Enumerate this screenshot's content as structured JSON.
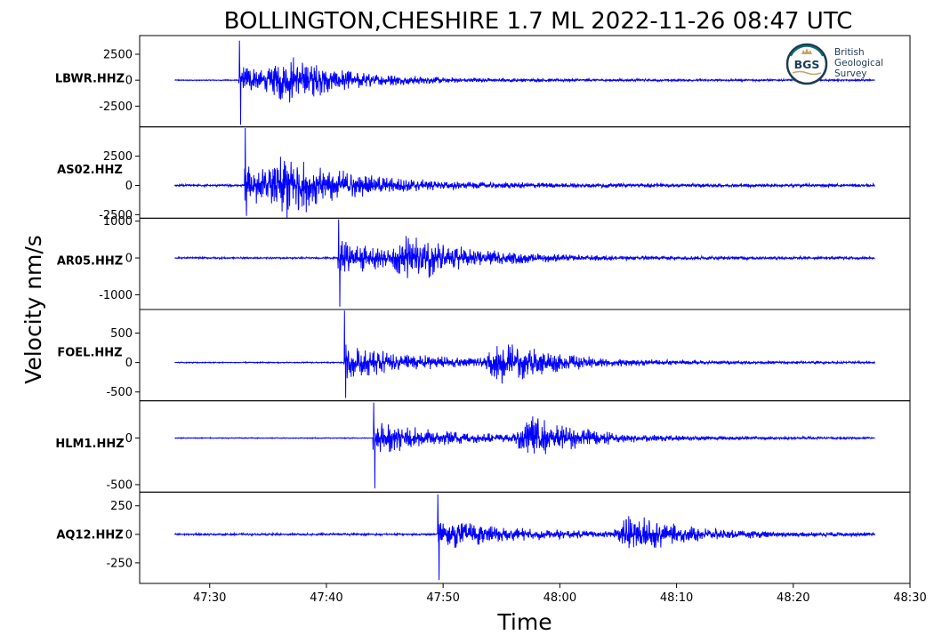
{
  "logo": {
    "abbr": "BGS",
    "lines": [
      "British",
      "Geological",
      "Survey"
    ],
    "colors": {
      "navy": "#1d3a52",
      "teal": "#0b6d6f",
      "gold": "#c6a26a"
    }
  },
  "chart_data": {
    "type": "line",
    "title": "BOLLINGTON,CHESHIRE 1.7 ML   2022-11-26 08:47 UTC",
    "xlabel": "Time",
    "ylabel": "Velocity nm/s",
    "line_color": "#0000ff",
    "x_ticks": [
      "47:30",
      "47:40",
      "47:50",
      "48:00",
      "48:10",
      "48:20",
      "48:30"
    ],
    "time_range": [
      "47:24",
      "48:30"
    ],
    "record_range": [
      "47:27",
      "48:27"
    ],
    "series": [
      {
        "name": "LBWR.HHZ",
        "ylim": [
          -4500,
          4300
        ],
        "y_ticks": [
          2500,
          0,
          -2500
        ],
        "y_tick_labels": [
          "2500",
          "0",
          "-2500"
        ],
        "arrivals": [
          "47:32.5",
          "47:36.5"
        ],
        "peak_max": 3800,
        "peak_min": -4300,
        "noise": 50
      },
      {
        "name": "AS02.HHZ",
        "ylim": [
          -2800,
          5000
        ],
        "y_ticks": [
          2500,
          0,
          -2500
        ],
        "y_tick_labels": [
          "2500",
          "0",
          "-2500"
        ],
        "arrivals": [
          "47:33",
          "47:36.5"
        ],
        "peak_max": 4900,
        "peak_min": -2600,
        "noise": 100
      },
      {
        "name": "AR05.HHZ",
        "ylim": [
          -1400,
          1080
        ],
        "y_ticks": [
          1000,
          0,
          -1000
        ],
        "y_tick_labels": [
          "1000",
          "0",
          "-1000"
        ],
        "arrivals": [
          "47:41",
          "47:47"
        ],
        "peak_max": 1050,
        "peak_min": -1320,
        "noise": 25
      },
      {
        "name": "FOEL.HHZ",
        "ylim": [
          -650,
          900
        ],
        "y_ticks": [
          500,
          0,
          -500
        ],
        "y_tick_labels": [
          "500",
          "0",
          "-500"
        ],
        "arrivals": [
          "47:41.5",
          "47:55"
        ],
        "peak_max": 880,
        "peak_min": -600,
        "noise": 10
      },
      {
        "name": "HLM1.HHZ",
        "ylim": [
          -580,
          400
        ],
        "y_ticks": [
          0,
          -500
        ],
        "y_tick_labels": [
          "0",
          "-500"
        ],
        "arrivals": [
          "47:44",
          "47:57.5"
        ],
        "peak_max": 380,
        "peak_min": -540,
        "noise": 5
      },
      {
        "name": "AQ12.HHZ",
        "ylim": [
          -430,
          370
        ],
        "y_ticks": [
          250,
          0,
          -250
        ],
        "y_tick_labels": [
          "250",
          "0",
          "-250"
        ],
        "arrivals": [
          "47:49.5",
          "48:06"
        ],
        "peak_max": 350,
        "peak_min": -400,
        "noise": 10
      }
    ]
  }
}
